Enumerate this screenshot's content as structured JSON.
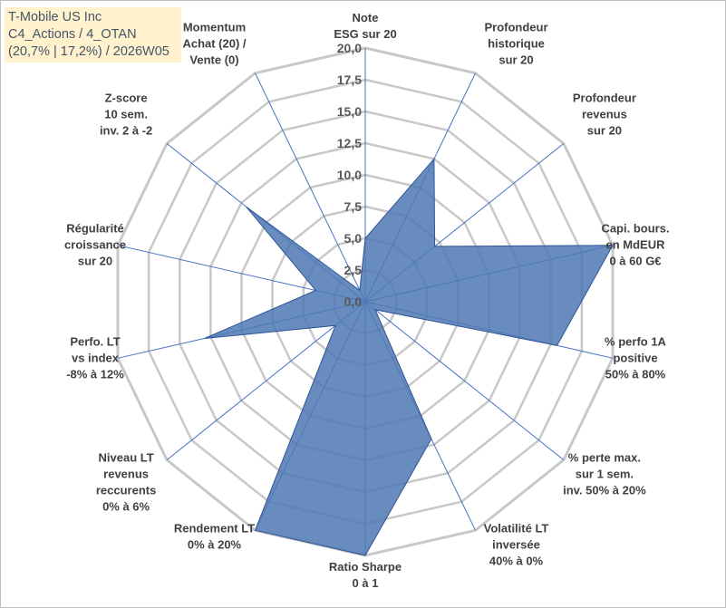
{
  "title_box": {
    "line1": "T-Mobile US Inc",
    "line2": "C4_Actions / 4_OTAN",
    "line3": "(20,7% | 17,2%) / 2026W05"
  },
  "colors": {
    "fill": "#4f78b4",
    "stroke": "#2f5597",
    "grid": "#c8c8c8",
    "spoke": "#4472c4",
    "title_bg": "#fff2cc"
  },
  "chart_data": {
    "type": "radar",
    "r_range": [
      0,
      20
    ],
    "r_ticks": [
      "0,0",
      "2,5",
      "5,0",
      "7,5",
      "10,0",
      "12,5",
      "15,0",
      "17,5",
      "20,0"
    ],
    "grid": true,
    "categories": [
      [
        "Note",
        "ESG sur 20"
      ],
      [
        "Profondeur",
        "historique",
        "sur 20"
      ],
      [
        "Profondeur",
        "revenus",
        "sur 20"
      ],
      [
        "Capi. bours.",
        "en MdEUR",
        "0 à 60 G€"
      ],
      [
        "% perfo 1A",
        "positive",
        "50% à 80%"
      ],
      [
        "% perte max.",
        "sur 1 sem.",
        "inv. 50% à 20%"
      ],
      [
        "Volatilité LT",
        "inversée",
        "40% à 0%"
      ],
      [
        "Ratio Sharpe",
        "0 à 1"
      ],
      [
        "Rendement LT",
        "0% à 20%"
      ],
      [
        "Niveau LT",
        "revenus",
        "reccurents",
        "0% à 6%"
      ],
      [
        "Perfo. LT",
        "vs index",
        "-8% à 12%"
      ],
      [
        "Régularité",
        "croissance",
        "sur 20"
      ],
      [
        "Z-score",
        "10 sem.",
        "inv. 2 à -2"
      ],
      [
        "Momentum",
        "Achat (20) /",
        "Vente (0)"
      ]
    ],
    "values": [
      5.0,
      12.5,
      7.0,
      20.0,
      15.5,
      1.0,
      12.0,
      20.0,
      20.0,
      3.0,
      13.0,
      4.0,
      12.0,
      1.0
    ]
  }
}
